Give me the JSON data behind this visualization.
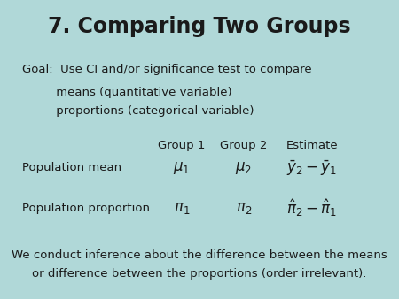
{
  "title": "7. Comparing Two Groups",
  "bg_color": "#b0d8d8",
  "text_color": "#1a1a1a",
  "title_fontsize": 17,
  "body_fontsize": 9.5,
  "math_fontsize": 12,
  "goal_line1": "Goal:  Use CI and/or significance test to compare",
  "goal_line2": "         means (quantitative variable)",
  "goal_line3": "         proportions (categorical variable)",
  "col_headers": [
    "Group 1",
    "Group 2",
    "Estimate"
  ],
  "row_labels": [
    "Population mean",
    "Population proportion"
  ],
  "bottom_text_line1": "We conduct inference about the difference between the means",
  "bottom_text_line2": "or difference between the proportions (order irrelevant)."
}
